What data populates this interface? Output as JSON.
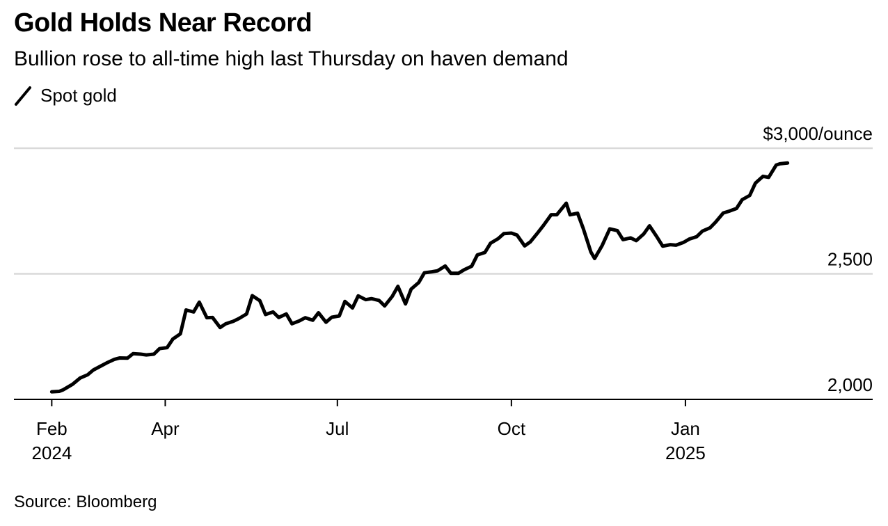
{
  "title": "Gold Holds Near Record",
  "subtitle": "Bullion rose to all-time high last Thursday on haven demand",
  "source": "Source: Bloomberg",
  "colors": {
    "line": "#000000",
    "grid": "#d9d9d9",
    "axis": "#000000",
    "background": "#ffffff"
  },
  "chart_data": {
    "type": "line",
    "legend": "top-left",
    "grid": true,
    "series": [
      {
        "name": "Spot gold",
        "x": [
          "2024-02-01",
          "2024-02-05",
          "2024-02-07",
          "2024-02-12",
          "2024-02-16",
          "2024-02-20",
          "2024-02-23",
          "2024-02-27",
          "2024-03-01",
          "2024-03-05",
          "2024-03-08",
          "2024-03-12",
          "2024-03-15",
          "2024-03-19",
          "2024-03-22",
          "2024-03-26",
          "2024-03-29",
          "2024-04-02",
          "2024-04-05",
          "2024-04-09",
          "2024-04-12",
          "2024-04-16",
          "2024-04-19",
          "2024-04-23",
          "2024-04-26",
          "2024-04-30",
          "2024-05-03",
          "2024-05-07",
          "2024-05-10",
          "2024-05-14",
          "2024-05-17",
          "2024-05-21",
          "2024-05-24",
          "2024-05-28",
          "2024-05-31",
          "2024-06-04",
          "2024-06-07",
          "2024-06-11",
          "2024-06-14",
          "2024-06-18",
          "2024-06-21",
          "2024-06-25",
          "2024-06-28",
          "2024-07-02",
          "2024-07-05",
          "2024-07-09",
          "2024-07-12",
          "2024-07-16",
          "2024-07-19",
          "2024-07-23",
          "2024-07-26",
          "2024-07-30",
          "2024-08-02",
          "2024-08-06",
          "2024-08-09",
          "2024-08-13",
          "2024-08-16",
          "2024-08-20",
          "2024-08-23",
          "2024-08-27",
          "2024-08-30",
          "2024-09-03",
          "2024-09-06",
          "2024-09-10",
          "2024-09-13",
          "2024-09-17",
          "2024-09-20",
          "2024-09-24",
          "2024-09-27",
          "2024-10-01",
          "2024-10-04",
          "2024-10-08",
          "2024-10-11",
          "2024-10-15",
          "2024-10-18",
          "2024-10-22",
          "2024-10-25",
          "2024-10-30",
          "2024-11-01",
          "2024-11-05",
          "2024-11-08",
          "2024-11-12",
          "2024-11-14",
          "2024-11-18",
          "2024-11-22",
          "2024-11-26",
          "2024-11-29",
          "2024-12-03",
          "2024-12-06",
          "2024-12-10",
          "2024-12-13",
          "2024-12-17",
          "2024-12-20",
          "2024-12-24",
          "2024-12-27",
          "2024-12-31",
          "2025-01-03",
          "2025-01-07",
          "2025-01-10",
          "2025-01-14",
          "2025-01-17",
          "2025-01-21",
          "2025-01-24",
          "2025-01-28",
          "2025-01-31",
          "2025-02-04",
          "2025-02-07",
          "2025-02-11",
          "2025-02-14",
          "2025-02-18",
          "2025-02-20",
          "2025-02-24"
        ],
        "values": [
          2030,
          2032,
          2038,
          2060,
          2085,
          2098,
          2117,
          2133,
          2145,
          2159,
          2165,
          2164,
          2182,
          2180,
          2177,
          2180,
          2202,
          2206,
          2240,
          2261,
          2356,
          2348,
          2387,
          2325,
          2326,
          2286,
          2301,
          2311,
          2322,
          2340,
          2413,
          2393,
          2338,
          2348,
          2326,
          2340,
          2301,
          2313,
          2325,
          2315,
          2345,
          2307,
          2327,
          2332,
          2390,
          2364,
          2412,
          2397,
          2401,
          2394,
          2372,
          2410,
          2450,
          2380,
          2439,
          2465,
          2504,
          2508,
          2512,
          2531,
          2502,
          2502,
          2516,
          2530,
          2575,
          2585,
          2622,
          2640,
          2660,
          2662,
          2654,
          2611,
          2627,
          2664,
          2693,
          2735,
          2735,
          2781,
          2735,
          2741,
          2680,
          2587,
          2561,
          2613,
          2679,
          2672,
          2636,
          2643,
          2632,
          2659,
          2691,
          2646,
          2610,
          2616,
          2614,
          2625,
          2638,
          2648,
          2670,
          2683,
          2706,
          2742,
          2749,
          2760,
          2795,
          2812,
          2861,
          2888,
          2884,
          2933,
          2938,
          2941
        ],
        "x_unit": "date"
      }
    ],
    "x_ticks": [
      {
        "date": "2024-02-01",
        "label": "Feb",
        "sublabel": "2024"
      },
      {
        "date": "2024-04-01",
        "label": "Apr",
        "sublabel": ""
      },
      {
        "date": "2024-07-01",
        "label": "Jul",
        "sublabel": ""
      },
      {
        "date": "2024-10-01",
        "label": "Oct",
        "sublabel": ""
      },
      {
        "date": "2025-01-01",
        "label": "Jan",
        "sublabel": "2025"
      }
    ],
    "y_ticks": [
      {
        "value": 2000,
        "label": "2,000"
      },
      {
        "value": 2500,
        "label": "2,500"
      },
      {
        "value": 3000,
        "label": "$3,000/ounce"
      }
    ],
    "xlim": [
      "2024-01-12",
      "2025-04-10"
    ],
    "ylim": [
      2000,
      3000
    ],
    "xlabel": "",
    "ylabel": ""
  }
}
